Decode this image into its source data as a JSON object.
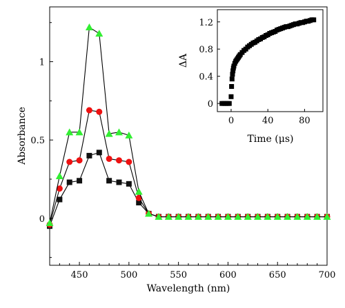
{
  "chart_data": [
    {
      "id": "main",
      "type": "line",
      "xlabel": "Wavelength (nm)",
      "ylabel": "Absorbance",
      "xlim": [
        420,
        700
      ],
      "ylim": [
        -0.3,
        1.35
      ],
      "xticks": [
        450,
        500,
        550,
        600,
        650,
        700
      ],
      "yticks": [
        0,
        0.5,
        1
      ],
      "xtick_labels": [
        "450",
        "500",
        "550",
        "600",
        "650",
        "700"
      ],
      "ytick_labels": [
        "0",
        "0.5",
        "1"
      ],
      "x": [
        420,
        430,
        440,
        450,
        460,
        470,
        480,
        490,
        500,
        510,
        520,
        530,
        540,
        550,
        560,
        570,
        580,
        590,
        600,
        610,
        620,
        630,
        640,
        650,
        660,
        670,
        680,
        690,
        700
      ],
      "series": [
        {
          "marker": "square",
          "color": "#111111",
          "values": [
            -0.05,
            0.12,
            0.23,
            0.24,
            0.4,
            0.42,
            0.24,
            0.23,
            0.22,
            0.1,
            0.03,
            0.01,
            0.01,
            0.01,
            0.01,
            0.01,
            0.01,
            0.01,
            0.01,
            0.01,
            0.01,
            0.01,
            0.01,
            0.01,
            0.01,
            0.01,
            0.01,
            0.01,
            0.01
          ]
        },
        {
          "marker": "circle",
          "color": "#ee1111",
          "values": [
            -0.04,
            0.19,
            0.36,
            0.37,
            0.69,
            0.68,
            0.38,
            0.37,
            0.36,
            0.13,
            0.03,
            0.01,
            0.01,
            0.01,
            0.01,
            0.01,
            0.01,
            0.01,
            0.01,
            0.01,
            0.01,
            0.01,
            0.01,
            0.01,
            0.01,
            0.01,
            0.01,
            0.01,
            0.01
          ]
        },
        {
          "marker": "triangle",
          "color": "#33ee33",
          "values": [
            -0.03,
            0.27,
            0.55,
            0.55,
            1.22,
            1.18,
            0.54,
            0.55,
            0.53,
            0.17,
            0.03,
            0.01,
            0.01,
            0.01,
            0.01,
            0.01,
            0.01,
            0.01,
            0.01,
            0.01,
            0.01,
            0.01,
            0.01,
            0.01,
            0.01,
            0.01,
            0.01,
            0.01,
            0.01
          ]
        }
      ]
    },
    {
      "id": "inset",
      "type": "scatter",
      "xlabel": "Time (μs)",
      "ylabel": "ΔA",
      "xlim": [
        -15,
        100
      ],
      "ylim": [
        -0.12,
        1.38
      ],
      "xticks": [
        0,
        40,
        80
      ],
      "yticks": [
        0,
        0.4,
        0.8,
        1.2
      ],
      "xtick_labels": [
        "0",
        "40",
        "80"
      ],
      "ytick_labels": [
        "0",
        "0.4",
        "0.8",
        "1.2"
      ],
      "marker": "square",
      "color": "#000000",
      "x": [
        -10,
        -8,
        -6,
        -4,
        -2,
        0,
        0.5,
        1,
        1.5,
        2,
        2.5,
        3,
        4,
        5,
        6,
        7,
        8,
        9,
        10,
        12,
        14,
        16,
        18,
        20,
        22,
        24,
        26,
        28,
        30,
        32,
        34,
        36,
        38,
        40,
        42,
        44,
        46,
        48,
        50,
        52,
        54,
        56,
        58,
        60,
        62,
        64,
        66,
        68,
        70,
        72,
        74,
        76,
        78,
        80,
        82,
        84,
        86,
        88,
        90
      ],
      "y": [
        0.0,
        0.0,
        0.0,
        0.0,
        0.0,
        0.1,
        0.25,
        0.36,
        0.43,
        0.48,
        0.52,
        0.55,
        0.59,
        0.62,
        0.64,
        0.66,
        0.68,
        0.7,
        0.72,
        0.75,
        0.78,
        0.8,
        0.83,
        0.85,
        0.87,
        0.89,
        0.9,
        0.92,
        0.94,
        0.95,
        0.97,
        0.98,
        1.0,
        1.01,
        1.03,
        1.04,
        1.05,
        1.06,
        1.08,
        1.09,
        1.1,
        1.11,
        1.12,
        1.13,
        1.13,
        1.14,
        1.15,
        1.16,
        1.17,
        1.17,
        1.18,
        1.19,
        1.19,
        1.2,
        1.21,
        1.21,
        1.22,
        1.23,
        1.23
      ]
    }
  ]
}
